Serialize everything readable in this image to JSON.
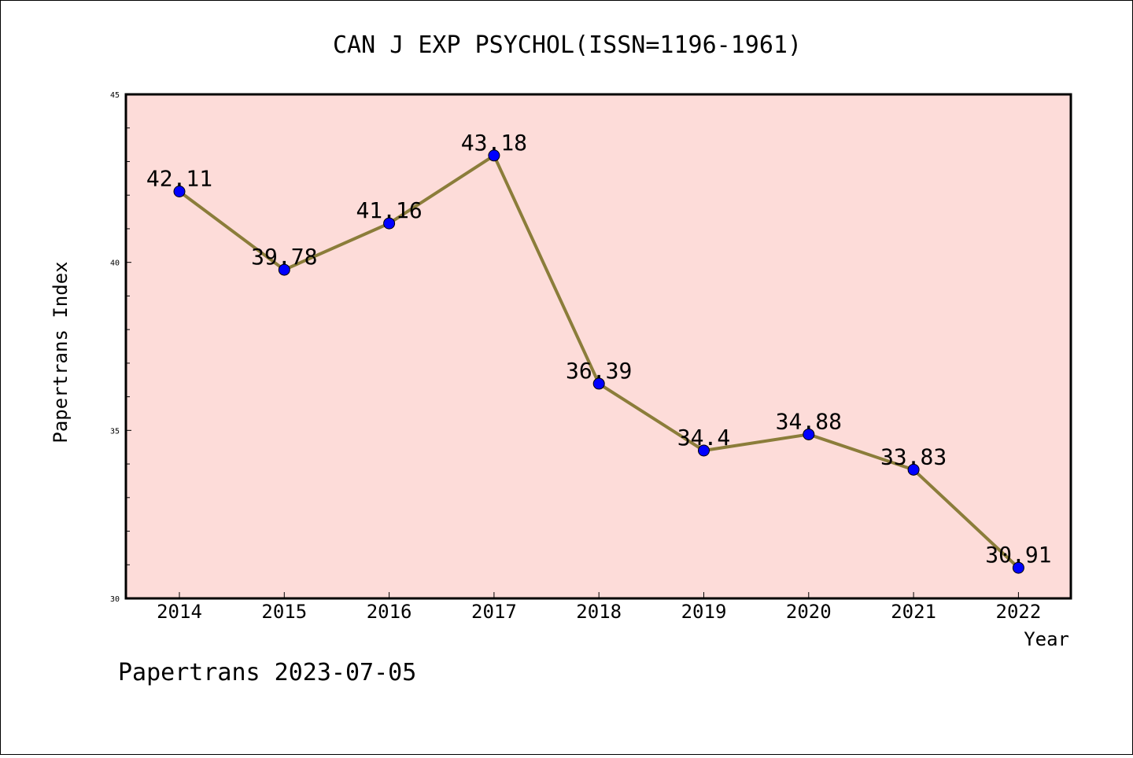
{
  "chart_data": {
    "type": "line",
    "title": "CAN J EXP PSYCHOL(ISSN=1196-1961)",
    "xlabel": "Year",
    "ylabel": "Papertrans Index",
    "categories": [
      "2014",
      "2015",
      "2016",
      "2017",
      "2018",
      "2019",
      "2020",
      "2021",
      "2022"
    ],
    "series": [
      {
        "values": [
          42.11,
          39.78,
          41.16,
          43.18,
          36.39,
          34.4,
          34.88,
          33.83,
          30.91
        ],
        "labels": [
          "42.11",
          "39.78",
          "41.16",
          "43.18",
          "36.39",
          "34.4",
          "34.88",
          "33.83",
          "30.91"
        ]
      }
    ],
    "ylim": [
      30,
      45
    ],
    "yticks": [
      "30",
      "35",
      "40",
      "45"
    ],
    "grid": false,
    "colors": {
      "plot_background": "#fddcd9",
      "line": "#8b7d3a",
      "marker_fill": "#0000ff",
      "marker_stroke": "#000000"
    }
  },
  "footer": "Papertrans 2023-07-05"
}
